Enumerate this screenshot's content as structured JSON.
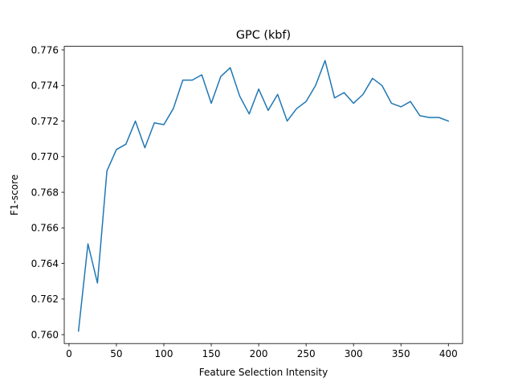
{
  "chart_data": {
    "type": "line",
    "title": "GPC (kbf)",
    "xlabel": "Feature Selection Intensity",
    "ylabel": "F1-score",
    "xlim": [
      -5,
      415
    ],
    "ylim": [
      0.7595,
      0.7762
    ],
    "xticks": [
      0,
      50,
      100,
      150,
      200,
      250,
      300,
      350,
      400
    ],
    "yticks": [
      0.76,
      0.762,
      0.764,
      0.766,
      0.768,
      0.77,
      0.772,
      0.774,
      0.776
    ],
    "ytick_labels": [
      "0.760",
      "0.762",
      "0.764",
      "0.766",
      "0.768",
      "0.770",
      "0.772",
      "0.774",
      "0.776"
    ],
    "grid": false,
    "series": [
      {
        "color": "#1f77b4",
        "x": [
          10,
          20,
          30,
          40,
          50,
          60,
          70,
          80,
          90,
          100,
          110,
          120,
          130,
          140,
          150,
          160,
          170,
          180,
          190,
          200,
          210,
          220,
          230,
          240,
          250,
          260,
          270,
          280,
          290,
          300,
          310,
          320,
          330,
          340,
          350,
          360,
          370,
          380,
          390,
          400
        ],
        "y": [
          0.7602,
          0.7651,
          0.7629,
          0.7692,
          0.7704,
          0.7707,
          0.772,
          0.7705,
          0.7719,
          0.7718,
          0.7727,
          0.7743,
          0.7743,
          0.7746,
          0.773,
          0.7745,
          0.775,
          0.7734,
          0.7724,
          0.7738,
          0.7726,
          0.7735,
          0.772,
          0.7727,
          0.7731,
          0.774,
          0.7754,
          0.7733,
          0.7736,
          0.773,
          0.7735,
          0.7744,
          0.774,
          0.773,
          0.7728,
          0.7731,
          0.7723,
          0.7722,
          0.7722,
          0.772
        ]
      }
    ]
  }
}
